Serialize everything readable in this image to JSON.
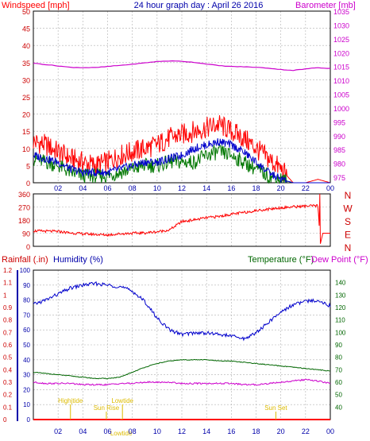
{
  "title": "24 hour graph day : April 26 2016",
  "colors": {
    "wind_avg": "#007700",
    "wind_gust": "#ff0000",
    "wind_dir": "#ff0000",
    "barometer": "#cc00cc",
    "rainfall": "#ff0000",
    "humidity": "#0000cc",
    "temperature": "#006600",
    "dewpoint": "#cc00cc",
    "tide": "#ddbb00",
    "grid": "#b0b0b0",
    "axis_dark": "#000000",
    "rain_axis": "#cc0000",
    "humidity_axis": "#0000aa"
  },
  "x_tick_labels": [
    "02",
    "04",
    "06",
    "08",
    "10",
    "12",
    "14",
    "16",
    "18",
    "20",
    "22",
    "00"
  ],
  "chart_data": [
    {
      "type": "line",
      "title": "24 hour graph day : April 26 2016",
      "left_label": "Windspeed [mph]",
      "right_label": "Barometer [mb]",
      "left_ticks": [
        "50",
        "45",
        "40",
        "35",
        "30",
        "25",
        "20",
        "15",
        "10",
        "5",
        "0"
      ],
      "right_ticks": [
        "1035",
        "1030",
        "1025",
        "1020",
        "1015",
        "1010",
        "1005",
        "1000",
        "995",
        "990",
        "985",
        "980",
        "975"
      ],
      "ylim_left": [
        0,
        50
      ],
      "ylim_right": [
        973,
        1035
      ],
      "x": [
        0,
        1,
        2,
        3,
        4,
        5,
        6,
        7,
        8,
        9,
        10,
        11,
        12,
        13,
        14,
        15,
        16,
        17,
        18,
        19,
        20,
        21,
        22,
        23,
        24
      ],
      "series": [
        {
          "key": "gust",
          "axis": "left",
          "values": [
            12,
            11,
            9,
            7,
            6,
            5,
            6,
            8,
            9,
            10,
            11,
            13,
            14,
            15,
            16,
            17,
            15,
            13,
            10,
            7,
            4,
            0,
            0,
            1,
            0
          ]
        },
        {
          "key": "avg",
          "axis": "left",
          "values": [
            7,
            6,
            5,
            3,
            2,
            2,
            2,
            3,
            4,
            5,
            5,
            6,
            6,
            6,
            8,
            9,
            8,
            6,
            4,
            2,
            1,
            0,
            0,
            0,
            0
          ]
        },
        {
          "key": "avg2",
          "axis": "left",
          "values": [
            8,
            7,
            6,
            4,
            3,
            3,
            3,
            4,
            5,
            6,
            6,
            7,
            8,
            10,
            11,
            12,
            11,
            9,
            6,
            3,
            1,
            0,
            0,
            0,
            0
          ]
        },
        {
          "key": "barometer",
          "axis": "right",
          "values": [
            1016.2,
            1015.7,
            1015.2,
            1014.7,
            1014.6,
            1014.6,
            1015.0,
            1015.4,
            1015.8,
            1016.3,
            1016.8,
            1017.0,
            1016.9,
            1016.5,
            1015.9,
            1015.3,
            1015.0,
            1014.9,
            1014.7,
            1014.4,
            1013.9,
            1013.6,
            1014.1,
            1014.6,
            1014.3
          ]
        }
      ]
    },
    {
      "type": "line",
      "right_axis_letters": [
        "N",
        "W",
        "S",
        "E",
        "N"
      ],
      "left_ticks": [
        "360",
        "270",
        "180",
        "90",
        "0"
      ],
      "ylim": [
        0,
        360
      ],
      "x": [
        0,
        1,
        2,
        3,
        4,
        5,
        6,
        7,
        8,
        9,
        10,
        11,
        12,
        13,
        14,
        15,
        16,
        17,
        18,
        19,
        20,
        21,
        22,
        23,
        23.2,
        24
      ],
      "series": [
        {
          "key": "direction",
          "values": [
            106,
            104,
            102,
            92,
            86,
            82,
            78,
            86,
            90,
            92,
            100,
            112,
            170,
            182,
            196,
            205,
            220,
            232,
            245,
            255,
            265,
            271,
            276,
            278,
            18,
            90
          ]
        }
      ]
    },
    {
      "type": "line",
      "labels": {
        "rainfall": "Rainfall (.in)",
        "humidity": "Humidity (%)",
        "temperature": "Temperature (°F)",
        "dewpoint": "Dew Point (°F)"
      },
      "humidity_ticks": [
        "100",
        "90",
        "80",
        "70",
        "60",
        "50",
        "40",
        "30",
        "20",
        "10",
        "0"
      ],
      "rain_ticks": [
        "1.2",
        "1.1",
        "1",
        "0.9",
        "0.8",
        "0.7",
        "0.6",
        "0.5",
        "0.4",
        "0.3",
        "0.2",
        "0.1",
        "0"
      ],
      "temp_ticks": [
        "140",
        "130",
        "120",
        "110",
        "100",
        "90",
        "80",
        "70",
        "60",
        "50",
        "40"
      ],
      "ylim_humidity": [
        0,
        100
      ],
      "ylim_temp": [
        30,
        150
      ],
      "ylim_rain": [
        0,
        1.2
      ],
      "x": [
        0,
        1,
        2,
        3,
        4,
        5,
        6,
        7,
        8,
        9,
        10,
        11,
        12,
        13,
        14,
        15,
        16,
        17,
        18,
        19,
        20,
        21,
        22,
        23,
        24
      ],
      "series": [
        {
          "key": "humidity",
          "values": [
            77,
            80,
            84,
            88,
            90,
            91,
            90,
            89,
            86,
            79,
            68,
            60,
            57,
            58,
            58,
            57,
            56,
            54,
            58,
            65,
            72,
            77,
            79,
            80,
            76
          ]
        },
        {
          "key": "temperature",
          "values": [
            68,
            67,
            66,
            65,
            64,
            63,
            63,
            64,
            68,
            72,
            75,
            77,
            78,
            78,
            78,
            77,
            77,
            76,
            75,
            74,
            73,
            72,
            71,
            70,
            69
          ]
        },
        {
          "key": "dewpoint",
          "values": [
            60,
            59,
            59,
            59,
            58,
            58,
            58,
            59,
            59,
            60,
            60,
            60,
            59,
            59,
            59,
            59,
            59,
            58,
            58,
            59,
            60,
            61,
            62,
            61,
            59
          ]
        },
        {
          "key": "rainfall",
          "values": [
            0,
            0,
            0,
            0,
            0,
            0,
            0,
            0,
            0,
            0,
            0,
            0,
            0,
            0,
            0,
            0,
            0,
            0,
            0,
            0,
            0,
            0,
            0,
            0,
            0
          ]
        }
      ],
      "tide_markers": [
        {
          "text": "Highjtide",
          "hour": 3.0,
          "row": 0
        },
        {
          "text": "Sun Rise",
          "hour": 5.9,
          "row": 1
        },
        {
          "text": "Lowtide",
          "hour": 7.2,
          "row": 0
        },
        {
          "text": "Lowtide",
          "hour": 7.1,
          "row": 2
        },
        {
          "text": "Sun Set",
          "hour": 19.6,
          "row": 1
        }
      ]
    }
  ]
}
